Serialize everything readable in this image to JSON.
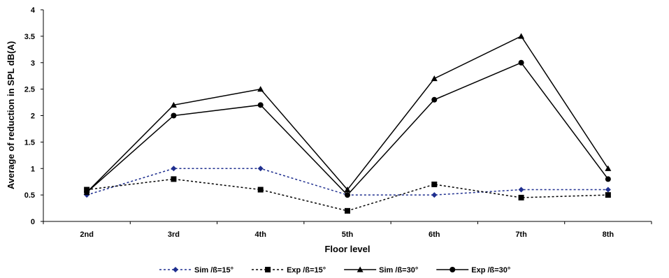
{
  "chart_data": {
    "type": "line",
    "title": "",
    "xlabel": "Floor level",
    "ylabel": "Average of reduction in SPL dB(A)",
    "categories": [
      "2nd",
      "3rd",
      "4th",
      "5th",
      "6th",
      "7th",
      "8th"
    ],
    "ylim": [
      0,
      4
    ],
    "yticks": [
      "0",
      "0.5",
      "1",
      "1.5",
      "2",
      "2.5",
      "3",
      "3.5",
      "4"
    ],
    "grid": false,
    "legend_position": "bottom",
    "series": [
      {
        "name": "Sim /ß=15°",
        "values": [
          0.5,
          1.0,
          1.0,
          0.5,
          0.5,
          0.6,
          0.6
        ],
        "color": "#1f2f8f",
        "line": "dashed",
        "marker": "diamond"
      },
      {
        "name": "Exp /ß=15°",
        "values": [
          0.6,
          0.8,
          0.6,
          0.2,
          0.7,
          0.45,
          0.5
        ],
        "color": "#000000",
        "line": "dashed",
        "marker": "square"
      },
      {
        "name": "Sim /ß=30°",
        "values": [
          0.55,
          2.2,
          2.5,
          0.6,
          2.7,
          3.5,
          1.0
        ],
        "color": "#000000",
        "line": "solid",
        "marker": "triangle"
      },
      {
        "name": "Exp /ß=30°",
        "values": [
          0.55,
          2.0,
          2.2,
          0.5,
          2.3,
          3.0,
          0.8
        ],
        "color": "#000000",
        "line": "solid",
        "marker": "circle"
      }
    ]
  }
}
